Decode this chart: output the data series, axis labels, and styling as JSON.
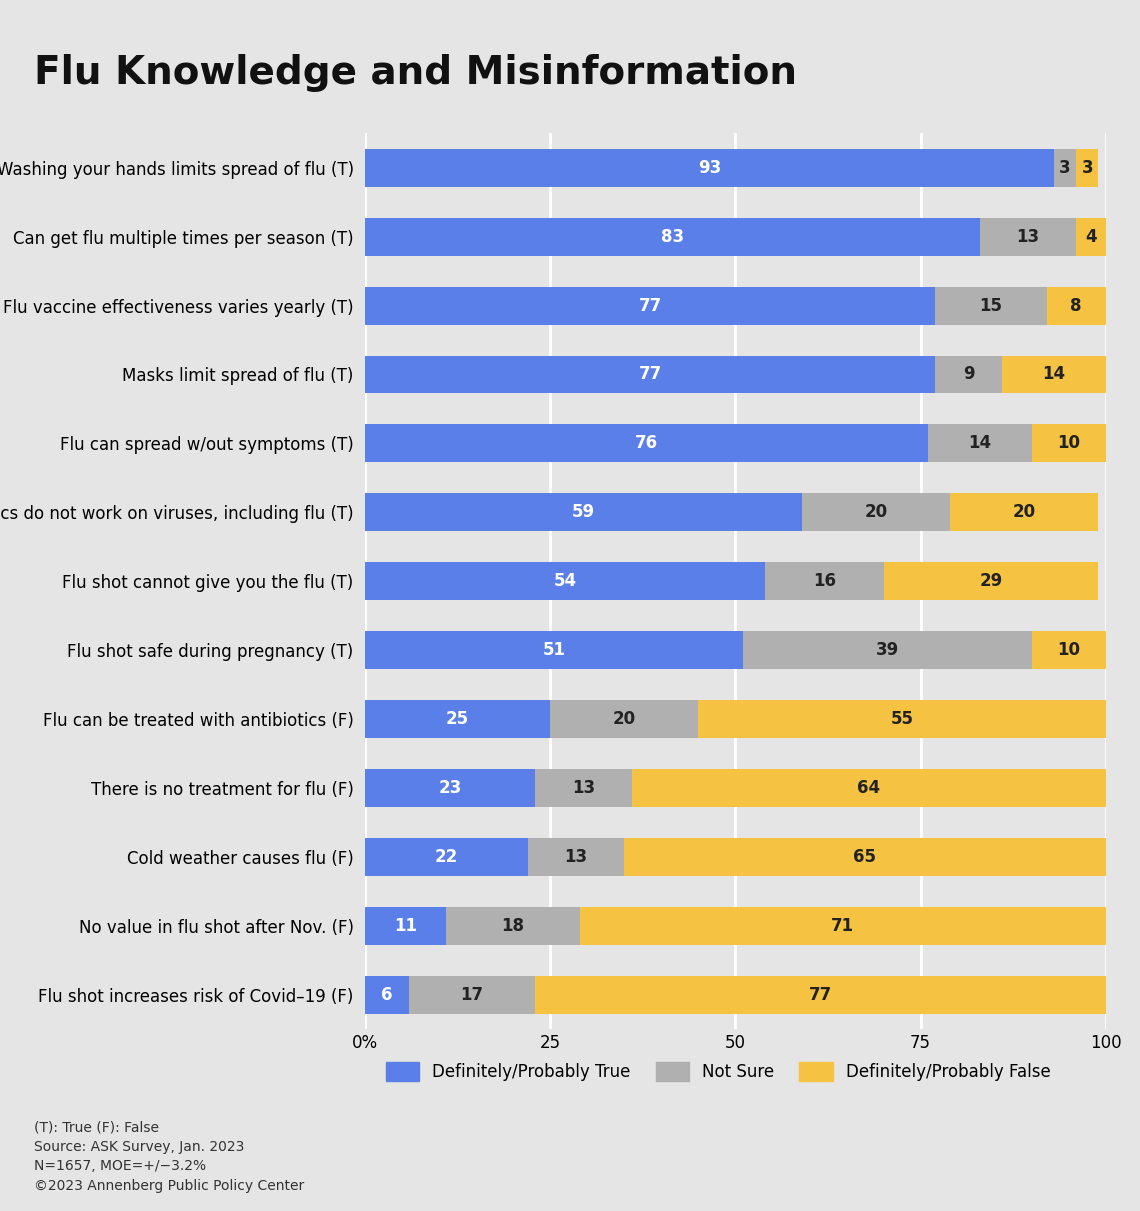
{
  "title": "Flu Knowledge and Misinformation",
  "categories": [
    "Washing your hands limits spread of flu (T)",
    "Can get flu multiple times per season (T)",
    "Flu vaccine effectiveness varies yearly (T)",
    "Masks limit spread of flu (T)",
    "Flu can spread w/out symptoms (T)",
    "Antibiotics do not work on viruses, including flu (T)",
    "Flu shot cannot give you the flu (T)",
    "Flu shot safe during pregnancy (T)",
    "Flu can be treated with antibiotics (F)",
    "There is no treatment for flu (F)",
    "Cold weather causes flu (F)",
    "No value in flu shot after Nov. (F)",
    "Flu shot increases risk of Covid–19 (F)"
  ],
  "true_vals": [
    93,
    83,
    77,
    77,
    76,
    59,
    54,
    51,
    25,
    23,
    22,
    11,
    6
  ],
  "notsure_vals": [
    3,
    13,
    15,
    9,
    14,
    20,
    16,
    39,
    20,
    13,
    13,
    18,
    17
  ],
  "false_vals": [
    3,
    4,
    8,
    14,
    10,
    20,
    29,
    10,
    55,
    64,
    65,
    71,
    77
  ],
  "color_true": "#5b7fe8",
  "color_notsure": "#b0b0b0",
  "color_false": "#f5c242",
  "background_color": "#e5e5e5",
  "grid_color": "#ffffff",
  "text_color_white": "#ffffff",
  "text_color_dark": "#222222",
  "xticks": [
    0,
    25,
    50,
    75,
    100
  ],
  "xtick_labels": [
    "0%",
    "25",
    "50",
    "75",
    "100"
  ],
  "legend_labels": [
    "Definitely/Probably True",
    "Not Sure",
    "Definitely/Probably False"
  ],
  "footnote": "(T): True (F): False\nSource: ASK Survey, Jan. 2023\nN=1657, MOE=+/−3.2%\n©2023 Annenberg Public Policy Center",
  "title_fontsize": 28,
  "label_fontsize": 12,
  "tick_fontsize": 12,
  "bar_label_fontsize": 12,
  "footnote_fontsize": 10,
  "bar_height": 0.55
}
